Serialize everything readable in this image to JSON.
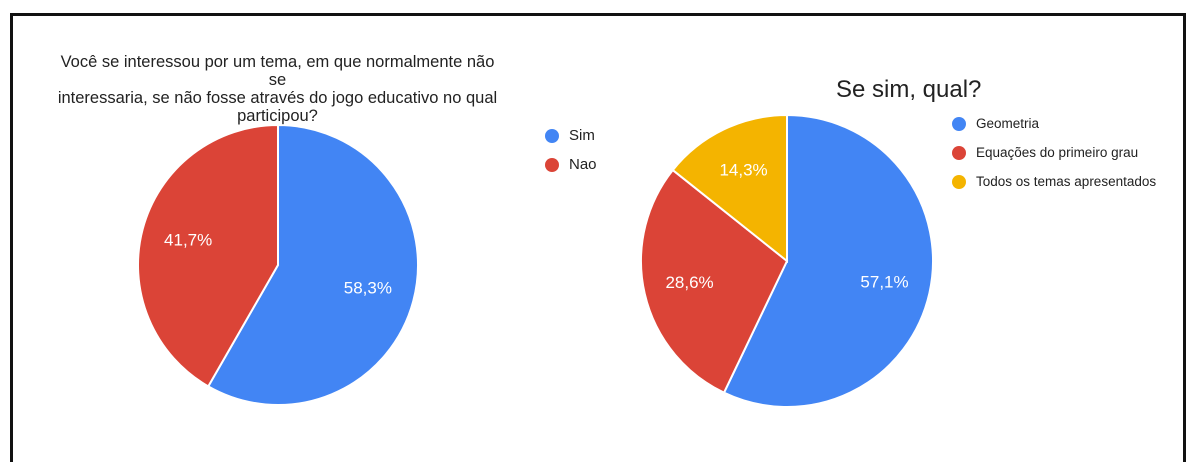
{
  "chart_data": [
    {
      "type": "pie",
      "title": "Você se interessou por um tema, em que normalmente não se\ninteressaria, se não fosse através do jogo educativo no qual\nparticipou?",
      "categories": [
        "Sim",
        "Nao"
      ],
      "values": [
        58.3,
        41.7
      ],
      "value_labels": [
        "58,3%",
        "41,7%"
      ],
      "colors": [
        "#4285f4",
        "#db4437"
      ],
      "legend_position": "right"
    },
    {
      "type": "pie",
      "title": "Se sim, qual?",
      "categories": [
        "Geometria",
        "Equações do primeiro grau",
        "Todos os temas apresentados"
      ],
      "values": [
        57.1,
        28.6,
        14.3
      ],
      "value_labels": [
        "57,1%",
        "28,6%",
        "14,3%"
      ],
      "colors": [
        "#4285f4",
        "#db4437",
        "#f4b400"
      ],
      "legend_position": "right"
    }
  ]
}
